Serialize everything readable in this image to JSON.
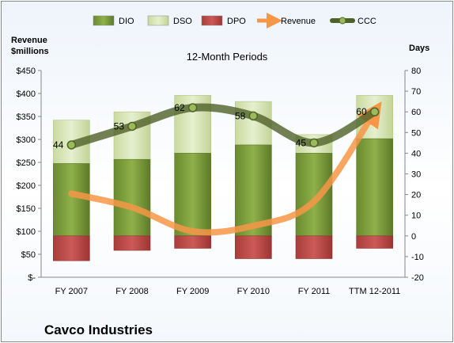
{
  "chart_data": {
    "type": "bar",
    "title": "12-Month Periods",
    "company": "Cavco Industries",
    "left_axis": {
      "label_line1": "Revenue",
      "label_line2": "$millions",
      "range": [
        0,
        450
      ],
      "ticks": [
        "$-",
        "$50",
        "$100",
        "$150",
        "$200",
        "$250",
        "$300",
        "$350",
        "$400",
        "$450"
      ],
      "tick_values": [
        0,
        50,
        100,
        150,
        200,
        250,
        300,
        350,
        400,
        450
      ]
    },
    "right_axis": {
      "label": "Days",
      "range": [
        -20,
        80
      ],
      "ticks": [
        "-20",
        "-10",
        "0",
        "10",
        "20",
        "30",
        "40",
        "50",
        "60",
        "70",
        "80"
      ],
      "tick_values": [
        -20,
        -10,
        0,
        10,
        20,
        30,
        40,
        50,
        60,
        70,
        80
      ]
    },
    "categories": [
      "FY 2007",
      "FY 2008",
      "FY 2009",
      "FY 2010",
      "FY 2011",
      "TTM 12-2011"
    ],
    "series": [
      {
        "name": "DIO",
        "axis": "right",
        "kind": "stacked-bar",
        "color": "#77933c",
        "values": [
          35,
          37,
          40,
          44,
          40,
          47
        ]
      },
      {
        "name": "DSO",
        "axis": "right",
        "kind": "stacked-bar",
        "color": "#d7e4bd",
        "values": [
          21,
          23,
          28,
          21,
          9,
          21
        ]
      },
      {
        "name": "DPO",
        "axis": "right",
        "kind": "stacked-bar",
        "color": "#c0504d",
        "values": [
          12,
          7,
          6,
          11,
          11,
          6
        ]
      },
      {
        "name": "Revenue",
        "axis": "left",
        "kind": "line",
        "color": "#f79646",
        "values": [
          182,
          152,
          100,
          112,
          165,
          360
        ]
      },
      {
        "name": "CCC",
        "axis": "right",
        "kind": "line",
        "color": "#4f6228",
        "values": [
          44,
          53,
          62,
          58,
          45,
          60
        ],
        "labels": [
          "44",
          "53",
          "62",
          "58",
          "45",
          "60"
        ]
      }
    ],
    "grid": false,
    "legend": "top"
  }
}
